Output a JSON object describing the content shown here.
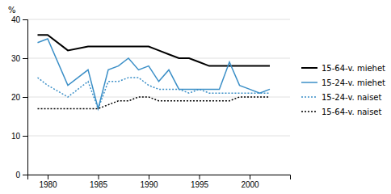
{
  "chart_data": {
    "type": "line",
    "y_label": "%",
    "x": [
      1979,
      1980,
      1982,
      1984,
      1985,
      1986,
      1987,
      1988,
      1989,
      1990,
      1991,
      1992,
      1993,
      1994,
      1995,
      1996,
      1997,
      1998,
      1999,
      2000,
      2001,
      2002
    ],
    "series": [
      {
        "name": "15-64-v. miehet",
        "color": "#000000",
        "line_style": "solid",
        "values": [
          36,
          36,
          32,
          33,
          33,
          33,
          33,
          33,
          33,
          33,
          32,
          31,
          30,
          30,
          29,
          28,
          28,
          28,
          28,
          28,
          28,
          28
        ]
      },
      {
        "name": "15-24-v. miehet",
        "color": "#3b8fc7",
        "line_style": "solid",
        "values": [
          34,
          35,
          23,
          27,
          17,
          27,
          28,
          30,
          27,
          28,
          24,
          27,
          22,
          22,
          22,
          22,
          22,
          29,
          23,
          22,
          21,
          22
        ]
      },
      {
        "name": "15-24-v. naiset",
        "color": "#3b8fc7",
        "line_style": "dotted",
        "values": [
          25,
          23,
          20,
          24,
          17,
          24,
          24,
          25,
          25,
          23,
          22,
          22,
          22,
          21,
          22,
          21,
          21,
          21,
          21,
          21,
          21,
          21
        ]
      },
      {
        "name": "15-64-v. naiset",
        "color": "#000000",
        "line_style": "dotted",
        "values": [
          17,
          17,
          17,
          17,
          17,
          18,
          19,
          19,
          20,
          20,
          19,
          19,
          19,
          19,
          19,
          19,
          19,
          19,
          20,
          20,
          20,
          20
        ]
      }
    ],
    "xlim": [
      1978,
      2004
    ],
    "xticks": [
      1980,
      1985,
      1990,
      1995,
      2000
    ],
    "ylim": [
      0,
      40
    ],
    "yticks": [
      0,
      10,
      20,
      30,
      40
    ],
    "grid": true,
    "legend": "right"
  }
}
